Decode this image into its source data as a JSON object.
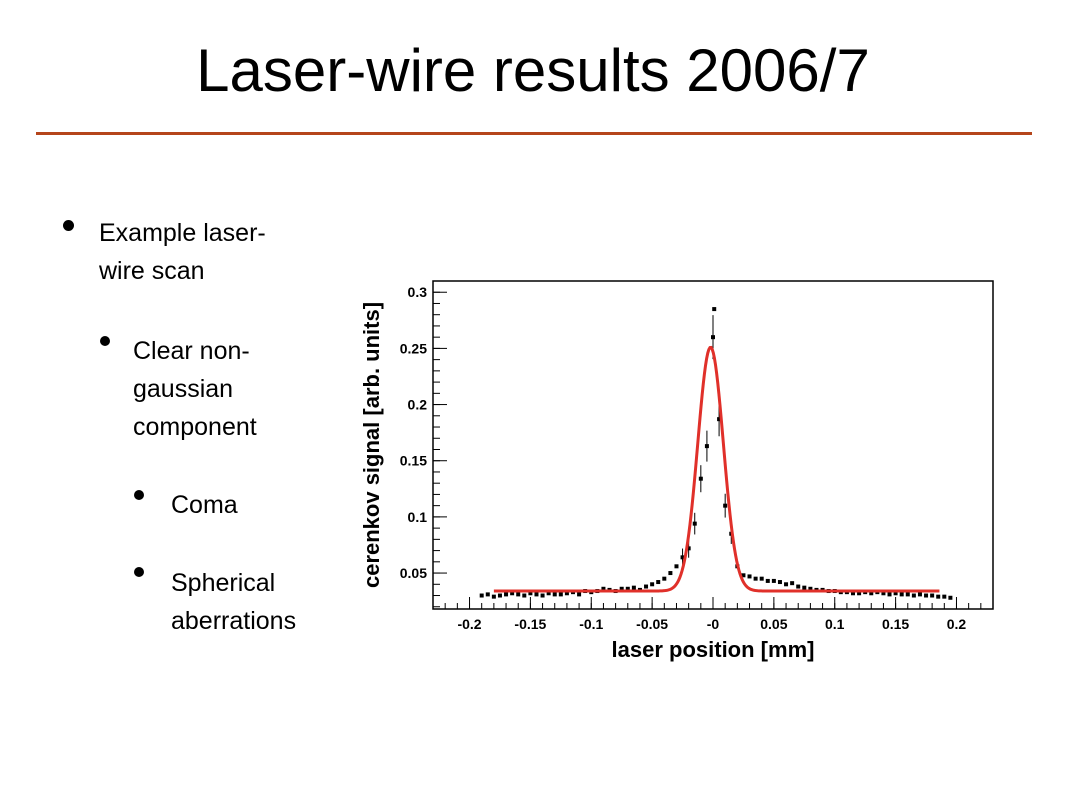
{
  "slide": {
    "title": "Laser-wire results 2006/7",
    "accent_color": "#b5451b",
    "bullets": [
      {
        "level": 1,
        "text": "Example laser-\nwire scan"
      },
      {
        "level": 2,
        "text": "Clear non-\ngaussian\ncomponent"
      },
      {
        "level": 3,
        "text": "Coma"
      },
      {
        "level": 3,
        "text": "Spherical\naberrations"
      }
    ]
  },
  "chart_data": {
    "type": "scatter",
    "title": "",
    "xlabel": "laser position [mm]",
    "ylabel": "cerenkov signal [arb. units]",
    "xlim": [
      -0.23,
      0.23
    ],
    "ylim": [
      0.018,
      0.31
    ],
    "xticks": [
      "-0.2",
      "-0.15",
      "-0.1",
      "-0.05",
      "-0",
      "0.05",
      "0.1",
      "0.15",
      "0.2"
    ],
    "yticks": [
      "0.05",
      "0.1",
      "0.15",
      "0.2",
      "0.25",
      "0.3"
    ],
    "fit_color": "#e0302a",
    "point_color": "#000000",
    "series": [
      {
        "kind": "points",
        "x": [
          -0.19,
          -0.185,
          -0.18,
          -0.175,
          -0.17,
          -0.165,
          -0.16,
          -0.155,
          -0.15,
          -0.145,
          -0.14,
          -0.135,
          -0.13,
          -0.125,
          -0.12,
          -0.115,
          -0.11,
          -0.105,
          -0.1,
          -0.095,
          -0.09,
          -0.085,
          -0.08,
          -0.075,
          -0.07,
          -0.065,
          -0.06,
          -0.055,
          -0.05,
          -0.045,
          -0.04,
          -0.035,
          -0.03,
          -0.025,
          -0.02,
          -0.015,
          -0.01,
          -0.005,
          0.0,
          0.005,
          0.01,
          0.015,
          0.02,
          0.025,
          0.03,
          0.035,
          0.04,
          0.045,
          0.05,
          0.055,
          0.06,
          0.065,
          0.07,
          0.075,
          0.08,
          0.085,
          0.09,
          0.095,
          0.1,
          0.105,
          0.11,
          0.115,
          0.12,
          0.125,
          0.13,
          0.135,
          0.14,
          0.145,
          0.15,
          0.155,
          0.16,
          0.165,
          0.17,
          0.175,
          0.18,
          0.185,
          0.19,
          0.195
        ],
        "y": [
          0.03,
          0.031,
          0.029,
          0.03,
          0.031,
          0.032,
          0.031,
          0.03,
          0.032,
          0.031,
          0.03,
          0.032,
          0.031,
          0.031,
          0.032,
          0.033,
          0.031,
          0.034,
          0.033,
          0.034,
          0.036,
          0.035,
          0.034,
          0.036,
          0.036,
          0.037,
          0.035,
          0.038,
          0.04,
          0.042,
          0.045,
          0.05,
          0.056,
          0.064,
          0.072,
          0.094,
          0.134,
          0.163,
          0.26,
          0.187,
          0.11,
          0.085,
          0.056,
          0.048,
          0.047,
          0.045,
          0.045,
          0.043,
          0.043,
          0.042,
          0.04,
          0.041,
          0.038,
          0.037,
          0.036,
          0.035,
          0.035,
          0.034,
          0.034,
          0.033,
          0.033,
          0.032,
          0.032,
          0.033,
          0.032,
          0.033,
          0.032,
          0.031,
          0.032,
          0.031,
          0.031,
          0.03,
          0.031,
          0.03,
          0.03,
          0.029,
          0.029,
          0.028
        ]
      },
      {
        "kind": "outlier",
        "x": [
          0.001
        ],
        "y": [
          0.285
        ]
      },
      {
        "kind": "fit",
        "baseline": 0.034,
        "amplitude": 0.217,
        "mean": -0.002,
        "sigma": 0.0105,
        "range": [
          -0.18,
          0.186
        ]
      }
    ]
  }
}
